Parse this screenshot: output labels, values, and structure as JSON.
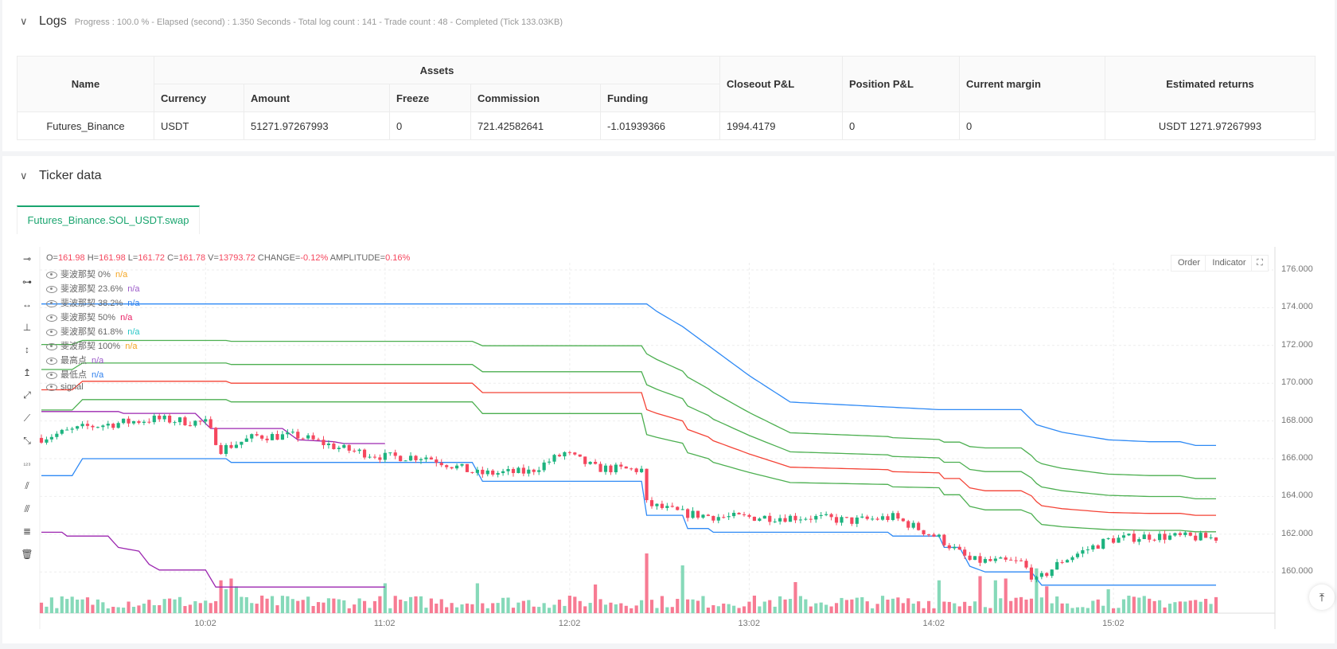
{
  "logs": {
    "title": "Logs",
    "summary": "Progress : 100.0 % - Elapsed (second) : 1.350  Seconds - Total log count : 141 - Trade count : 48 - Completed (Tick 133.03KB)",
    "table": {
      "headers": {
        "name": "Name",
        "assets": "Assets",
        "currency": "Currency",
        "amount": "Amount",
        "freeze": "Freeze",
        "commission": "Commission",
        "funding": "Funding",
        "closeout": "Closeout P&L",
        "position": "Position P&L",
        "margin": "Current margin",
        "returns": "Estimated returns"
      },
      "row": {
        "name": "Futures_Binance",
        "currency": "USDT",
        "amount": "51271.97267993",
        "freeze": "0",
        "commission": "721.42582641",
        "funding": "-1.01939366",
        "closeout": "1994.4179",
        "position": "0",
        "margin": "0",
        "returns": "USDT 1271.97267993"
      }
    }
  },
  "ticker": {
    "title": "Ticker data",
    "tab": "Futures_Binance.SOL_USDT.swap",
    "buttons": {
      "order": "Order",
      "indicator": "Indicator"
    },
    "ohlc": {
      "o_label": "O=",
      "o": "161.98",
      "h_label": "H=",
      "h": "161.98",
      "l_label": "L=",
      "l": "161.72",
      "c_label": "C=",
      "c": "161.78",
      "v_label": "V=",
      "v": "13793.72",
      "change_label": "CHANGE=",
      "change": "-0.12%",
      "amp_label": "AMPLITUDE=",
      "amp": "0.16%"
    },
    "legend": [
      {
        "label": "斐波那契 0%",
        "value": "n/a",
        "color": "#f5a623"
      },
      {
        "label": "斐波那契 23.6%",
        "value": "n/a",
        "color": "#9c5bc9"
      },
      {
        "label": "斐波那契 38.2%",
        "value": "n/a",
        "color": "#2f80ed"
      },
      {
        "label": "斐波那契 50%",
        "value": "n/a",
        "color": "#e91e63"
      },
      {
        "label": "斐波那契 61.8%",
        "value": "n/a",
        "color": "#26c6c6"
      },
      {
        "label": "斐波那契 100%",
        "value": "n/a",
        "color": "#f5a623"
      },
      {
        "label": "最高点",
        "value": "n/a",
        "color": "#9c5bc9"
      },
      {
        "label": "最低点",
        "value": "n/a",
        "color": "#2f80ed"
      },
      {
        "label": "signal",
        "value": "",
        "color": "#888"
      }
    ]
  },
  "chart_data": {
    "type": "candlestick",
    "candle_count": 230,
    "y_ticks": [
      "176.000",
      "174.000",
      "172.000",
      "170.000",
      "168.000",
      "166.000",
      "164.000",
      "162.000",
      "160.000"
    ],
    "ylim": [
      158.2,
      177
    ],
    "x_ticks": [
      "10:02",
      "11:02",
      "12:02",
      "13:02",
      "14:02",
      "15:02"
    ],
    "x_tick_index": [
      32,
      67,
      103,
      138,
      174,
      209
    ],
    "close_path": [
      [
        0,
        167.1
      ],
      [
        9,
        167.7
      ],
      [
        22,
        168.1
      ],
      [
        32,
        167.9
      ],
      [
        35,
        166.5
      ],
      [
        42,
        167.2
      ],
      [
        50,
        167.2
      ],
      [
        59,
        166.5
      ],
      [
        67,
        166.1
      ],
      [
        75,
        166.1
      ],
      [
        85,
        165.2
      ],
      [
        95,
        165.3
      ],
      [
        102,
        166.3
      ],
      [
        108,
        165.5
      ],
      [
        117,
        165.4
      ],
      [
        118,
        163.6
      ],
      [
        125,
        163.1
      ],
      [
        133,
        162.9
      ],
      [
        150,
        162.9
      ],
      [
        158,
        162.7
      ],
      [
        166,
        162.9
      ],
      [
        175,
        161.8
      ],
      [
        181,
        160.6
      ],
      [
        191,
        160.5
      ],
      [
        194,
        159.5
      ],
      [
        199,
        160.6
      ],
      [
        208,
        161.7
      ],
      [
        216,
        161.9
      ],
      [
        229,
        161.8
      ]
    ],
    "highest": [
      [
        0,
        174.2
      ],
      [
        118,
        174.2
      ],
      [
        120,
        173.8
      ],
      [
        125,
        173
      ],
      [
        130,
        172
      ],
      [
        138,
        170.4
      ],
      [
        146,
        169
      ],
      [
        175,
        168.6
      ],
      [
        191,
        168.6
      ],
      [
        194,
        167.8
      ],
      [
        199,
        167.4
      ],
      [
        208,
        167
      ],
      [
        216,
        166.9
      ],
      [
        222,
        166.9
      ],
      [
        225,
        166.7
      ],
      [
        229,
        166.7
      ]
    ],
    "lowest": [
      [
        0,
        165.1
      ],
      [
        6,
        165.1
      ],
      [
        8,
        166.0
      ],
      [
        36,
        166.0
      ],
      [
        37,
        165.8
      ],
      [
        84,
        165.8
      ],
      [
        86,
        164.8
      ],
      [
        117,
        164.8
      ],
      [
        118,
        163
      ],
      [
        125,
        163
      ],
      [
        126,
        162.3
      ],
      [
        130,
        162.3
      ],
      [
        131,
        162.1
      ],
      [
        165,
        162.1
      ],
      [
        166,
        161.9
      ],
      [
        175,
        161.9
      ],
      [
        176,
        161.3
      ],
      [
        179,
        161.3
      ],
      [
        181,
        160.3
      ],
      [
        184,
        160.0
      ],
      [
        193,
        160.0
      ],
      [
        195,
        159.3
      ],
      [
        229,
        159.3
      ]
    ],
    "fib_levels": [
      0.382,
      0.5,
      0.618,
      0.764
    ],
    "signal_upper": [
      [
        0,
        168.5
      ],
      [
        15,
        168.5
      ],
      [
        16,
        168.4
      ],
      [
        30,
        168.4
      ],
      [
        33,
        167.6
      ],
      [
        47,
        167.6
      ],
      [
        50,
        167.0
      ],
      [
        57,
        166.9
      ],
      [
        59,
        166.8
      ],
      [
        67,
        166.8
      ]
    ],
    "signal_lower": [
      [
        0,
        162.1
      ],
      [
        4,
        162.1
      ],
      [
        5,
        161.9
      ],
      [
        13,
        161.9
      ],
      [
        15,
        161.3
      ],
      [
        19,
        161.1
      ],
      [
        21,
        160.4
      ],
      [
        23,
        160.1
      ],
      [
        32,
        160.1
      ],
      [
        34,
        159.2
      ],
      [
        67,
        159.2
      ]
    ],
    "volume_spikes": [
      [
        35,
        55
      ],
      [
        36,
        40
      ],
      [
        37,
        58
      ],
      [
        38,
        45
      ],
      [
        67,
        50
      ],
      [
        85,
        50
      ],
      [
        108,
        48
      ],
      [
        118,
        100
      ],
      [
        125,
        80
      ],
      [
        147,
        52
      ],
      [
        175,
        55
      ],
      [
        183,
        62
      ],
      [
        186,
        55
      ],
      [
        188,
        58
      ],
      [
        194,
        75
      ],
      [
        196,
        45
      ],
      [
        208,
        40
      ]
    ],
    "colors": {
      "up": "#1db37f",
      "down": "#f5475e",
      "vol_up": "#86d9b9",
      "vol_down": "#f77b93",
      "high": "#2f8af5",
      "low": "#2f8af5",
      "fib": [
        "#4caf50",
        "#f44336",
        "#4caf50",
        "#4caf50"
      ],
      "signal": "#9c27b0"
    }
  }
}
